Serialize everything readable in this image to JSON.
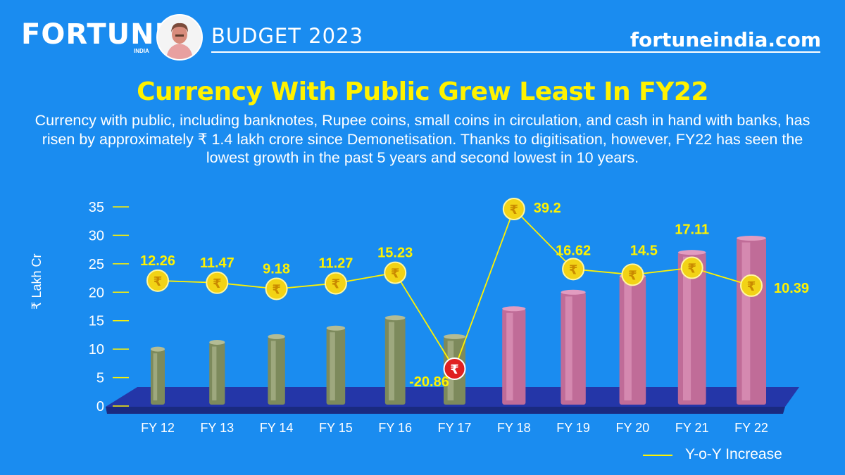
{
  "header": {
    "brand": "FORTUNE",
    "brand_sub": "INDIA",
    "section": "BUDGET 2023",
    "site": "fortuneindia.com"
  },
  "title": "Currency With Public Grew Least In FY22",
  "description": "Currency with public, including banknotes, Rupee coins, small coins in circulation, and cash in hand with banks, has risen by approximately ₹ 1.4 lakh crore since Demonetisation. Thanks to digitisation, however, FY22 has seen the lowest growth in the past 5 years and second lowest in 10 years.",
  "colors": {
    "background": "#1a8cf0",
    "accent": "#fff200",
    "floor": "#2436a8",
    "old_note": "#7d8a5c",
    "new_note": "#c06c98",
    "coin": "#f2d316",
    "coin_negative": "#e02020"
  },
  "chart_data": {
    "type": "bar",
    "categories": [
      "FY 12",
      "FY 13",
      "FY 14",
      "FY 15",
      "FY 16",
      "FY 17",
      "FY 18",
      "FY 19",
      "FY 20",
      "FY 21",
      "FY 22"
    ],
    "ylabel": "₹ Lakh Cr",
    "ylim": [
      0,
      35
    ],
    "yticks": [
      0,
      5,
      10,
      15,
      20,
      25,
      30,
      35
    ],
    "series": [
      {
        "values": [
          10,
          11.2,
          12.2,
          13.7,
          15.5,
          12.2,
          17.1,
          20,
          22.8,
          27,
          29.5
        ]
      },
      {
        "name": "Y-o-Y Increase",
        "type": "line",
        "values": [
          12.26,
          11.47,
          9.18,
          11.27,
          15.23,
          -20.86,
          39.2,
          16.62,
          14.5,
          17.11,
          10.39
        ],
        "labels": [
          "12.26",
          "11.47",
          "9.18",
          "11.27",
          "15.23",
          "-20.86",
          "39.2",
          "16.62",
          "14.5",
          "17.11",
          "10.39"
        ]
      }
    ],
    "note_style": [
      "old",
      "old",
      "old",
      "old",
      "old",
      "old",
      "new",
      "new",
      "new",
      "new",
      "new"
    ],
    "legend": "bottom-right"
  }
}
